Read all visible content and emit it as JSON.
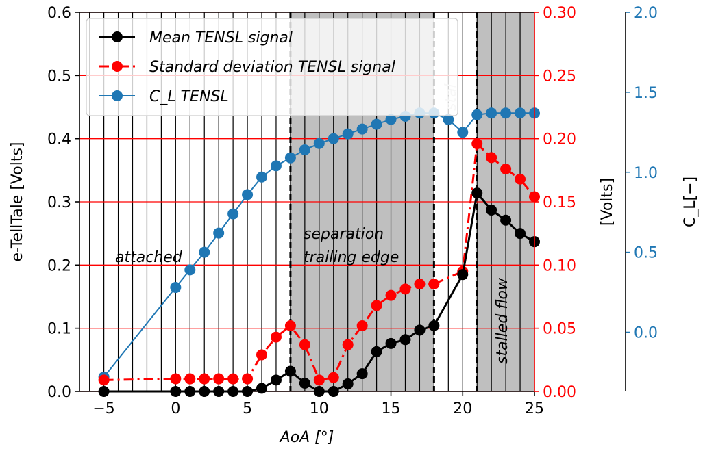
{
  "chart_data": {
    "type": "line",
    "xlabel": "AoA [°]",
    "ylabel_left": "e-TellTale  [Volts]",
    "ylabel_right1": "[Volts]",
    "ylabel_right2": "C_L[−]",
    "xlim": [
      -6.7,
      25
    ],
    "ylim_left": [
      0,
      0.6
    ],
    "ylim_right1": [
      0,
      0.3
    ],
    "ylim_right2": [
      -0.37,
      2.0
    ],
    "xticks": [
      -5,
      0,
      5,
      10,
      15,
      20,
      25
    ],
    "yticks_left": [
      0.0,
      0.1,
      0.2,
      0.3,
      0.4,
      0.5,
      0.6
    ],
    "yticks_right1": [
      0.0,
      0.05,
      0.1,
      0.15,
      0.2,
      0.25,
      0.3
    ],
    "yticks_right2": [
      0.0,
      0.5,
      1.0,
      1.5,
      2.0
    ],
    "xtick_labels": [
      "−5",
      "0",
      "5",
      "10",
      "15",
      "20",
      "25"
    ],
    "ytick_labels_left": [
      "0.0",
      "0.1",
      "0.2",
      "0.3",
      "0.4",
      "0.5",
      "0.6"
    ],
    "ytick_labels_right1": [
      "0.00",
      "0.05",
      "0.10",
      "0.15",
      "0.20",
      "0.25",
      "0.30"
    ],
    "ytick_labels_right2": [
      "0.0",
      "0.5",
      "1.0",
      "1.5",
      "2.0"
    ],
    "grid": "vertical black lines at integer AoA, horizontal red lines at right-axis ticks",
    "legend_position": "top-left",
    "shaded_regions": [
      [
        8,
        18
      ],
      [
        21,
        25
      ]
    ],
    "stall_lines": [
      8,
      18,
      21
    ],
    "annotations": [
      "attached",
      "separation",
      "trailing edge",
      "stal",
      "stalled flow"
    ],
    "series": [
      {
        "name": "Mean TENSL signal",
        "axis": "left",
        "color": "#000000",
        "style": "solid",
        "x": [
          -5,
          0,
          1,
          2,
          3,
          4,
          5,
          6,
          7,
          8,
          9,
          10,
          11,
          12,
          13,
          14,
          15,
          16,
          17,
          18,
          20,
          21,
          22,
          23,
          24,
          25
        ],
        "y": [
          0.0,
          0.0,
          0.0,
          0.0,
          0.0,
          0.0,
          0.0,
          0.005,
          0.018,
          0.032,
          0.013,
          0.0,
          0.0,
          0.012,
          0.028,
          0.063,
          0.076,
          0.082,
          0.097,
          0.104,
          0.185,
          0.314,
          0.287,
          0.271,
          0.25,
          0.237
        ]
      },
      {
        "name": "Standard deviation TENSL signal",
        "axis": "right1",
        "color": "#ff0000",
        "style": "dashdot",
        "x": [
          -5,
          0,
          1,
          2,
          3,
          4,
          5,
          6,
          7,
          8,
          9,
          10,
          11,
          12,
          13,
          14,
          15,
          16,
          17,
          18,
          20,
          21,
          22,
          23,
          24,
          25
        ],
        "y": [
          0.009,
          0.01,
          0.01,
          0.01,
          0.01,
          0.01,
          0.01,
          0.029,
          0.043,
          0.052,
          0.037,
          0.009,
          0.011,
          0.037,
          0.052,
          0.068,
          0.076,
          0.081,
          0.085,
          0.085,
          0.095,
          0.196,
          0.185,
          0.176,
          0.168,
          0.154
        ]
      },
      {
        "name": "C_L TENSL",
        "axis": "right2",
        "color": "#1f77b4",
        "style": "solid",
        "x": [
          -5,
          0,
          1,
          2,
          3,
          4,
          5,
          6,
          7,
          8,
          9,
          10,
          11,
          12,
          13,
          14,
          15,
          16,
          17,
          18,
          19,
          20,
          21,
          22,
          23,
          24,
          25
        ],
        "y": [
          -0.28,
          0.28,
          0.39,
          0.5,
          0.62,
          0.74,
          0.86,
          0.97,
          1.04,
          1.09,
          1.14,
          1.18,
          1.21,
          1.24,
          1.27,
          1.3,
          1.33,
          1.35,
          1.37,
          1.37,
          1.33,
          1.25,
          1.36,
          1.37,
          1.37,
          1.37,
          1.37
        ]
      }
    ]
  }
}
